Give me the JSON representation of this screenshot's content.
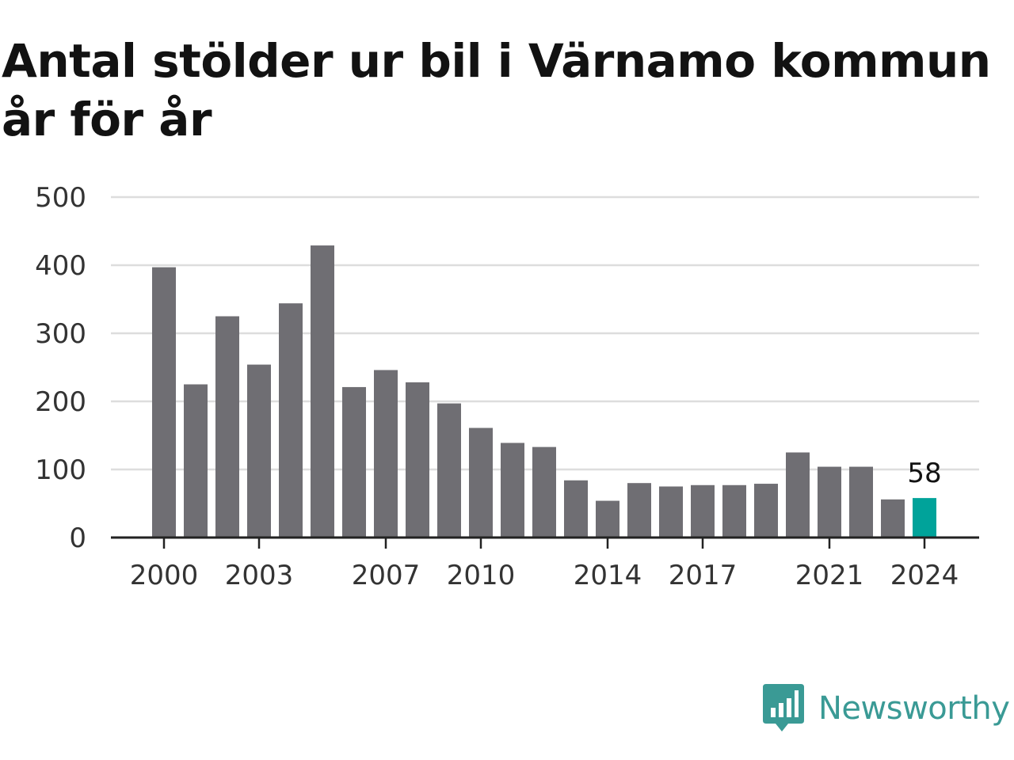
{
  "colors": {
    "bar": "#6f6e73",
    "highlight": "#00a39a",
    "grid": "#dddddd",
    "axis": "#222222",
    "brand": "#3a9a95"
  },
  "brand": {
    "icon": "newsworthy-logo-icon",
    "name": "Newsworthy"
  },
  "chart_data": {
    "type": "bar",
    "title": "Antal stölder ur bil i Värnamo kommun år för år",
    "xlabel": "",
    "ylabel": "",
    "categories": [
      "2000",
      "2001",
      "2002",
      "2003",
      "2004",
      "2005",
      "2006",
      "2007",
      "2008",
      "2009",
      "2010",
      "2011",
      "2012",
      "2013",
      "2014",
      "2015",
      "2016",
      "2017",
      "2018",
      "2019",
      "2020",
      "2021",
      "2022",
      "2023",
      "2024"
    ],
    "values": [
      397,
      225,
      325,
      254,
      344,
      429,
      221,
      246,
      228,
      197,
      161,
      139,
      133,
      84,
      54,
      80,
      75,
      77,
      77,
      79,
      125,
      104,
      104,
      56,
      58
    ],
    "x_tick_labels": [
      "2000",
      "2003",
      "2007",
      "2010",
      "2014",
      "2017",
      "2021",
      "2024"
    ],
    "y_ticks": [
      "0",
      "100",
      "200",
      "300",
      "400",
      "500"
    ],
    "ylim": [
      0,
      500
    ],
    "grid": true,
    "highlight": {
      "category": "2024",
      "label": "58"
    }
  }
}
